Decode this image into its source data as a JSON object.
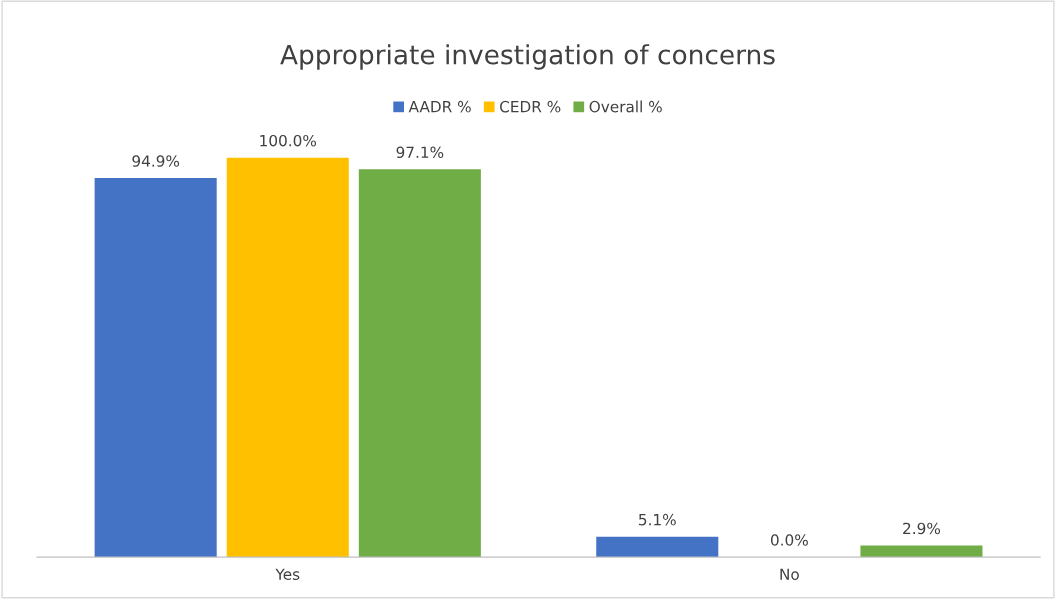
{
  "chart_data": {
    "type": "bar",
    "title": "Appropriate investigation of concerns",
    "categories": [
      "Yes",
      "No"
    ],
    "series": [
      {
        "name": "AADR %",
        "color": "#4472c4",
        "values": [
          94.9,
          5.1
        ],
        "value_labels": [
          "94.9%",
          "5.1%"
        ]
      },
      {
        "name": "CEDR %",
        "color": "#ffc000",
        "values": [
          100.0,
          0.0
        ],
        "value_labels": [
          "100.0%",
          "0.0%"
        ]
      },
      {
        "name": "Overall %",
        "color": "#70ad47",
        "values": [
          97.1,
          2.9
        ],
        "value_labels": [
          "97.1%",
          "2.9%"
        ]
      }
    ],
    "legend": "top"
  }
}
